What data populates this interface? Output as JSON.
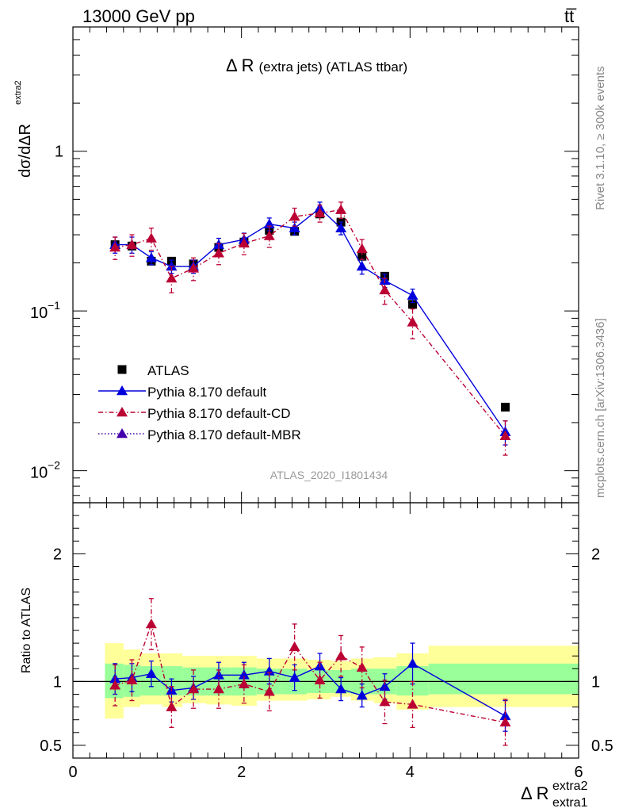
{
  "header": {
    "energy_label": "13000 GeV pp",
    "process_label": "tt̅"
  },
  "side": {
    "rivet": "Rivet 3.1.10, ≥ 300k events",
    "mcplots": "mcplots.cern.ch [arXiv:1306.3436]"
  },
  "chart_data": [
    {
      "type": "scatter",
      "title": "Δ R",
      "title_suffix": "(extra jets) (ATLAS ttbar)",
      "analysis_tag": "ATLAS_2020_I1801434",
      "ylabel_main": "dσ/dΔR",
      "ylabel_extra": "extra2",
      "yscale": "log",
      "xlim": [
        0,
        6
      ],
      "ylim": [
        0.0063,
        6.0
      ],
      "y_tick_labels": [
        "10",
        "1"
      ],
      "y_tick_exponents": [
        "−2",
        "−1"
      ],
      "y_tick_values": [
        0.01,
        0.1,
        1
      ],
      "legend_position": "lower-left",
      "series": [
        {
          "name": "ATLAS",
          "color": "#000000",
          "marker": "square",
          "x": [
            0.5,
            0.7,
            0.93,
            1.17,
            1.43,
            1.73,
            2.03,
            2.33,
            2.63,
            2.93,
            3.18,
            3.43,
            3.7,
            4.03,
            5.13
          ],
          "y": [
            0.26,
            0.255,
            0.205,
            0.205,
            0.197,
            0.25,
            0.27,
            0.32,
            0.315,
            0.405,
            0.36,
            0.22,
            0.165,
            0.11,
            0.025
          ]
        },
        {
          "name": "Pythia 8.170 default",
          "color": "#0000dd",
          "marker": "triangle",
          "line": "solid",
          "x": [
            0.5,
            0.7,
            0.93,
            1.17,
            1.43,
            1.73,
            2.03,
            2.33,
            2.63,
            2.93,
            3.18,
            3.43,
            3.7,
            4.03,
            5.13
          ],
          "y": [
            0.26,
            0.26,
            0.215,
            0.19,
            0.19,
            0.26,
            0.28,
            0.35,
            0.33,
            0.44,
            0.33,
            0.19,
            0.155,
            0.125,
            0.0175
          ],
          "err": [
            0.03,
            0.03,
            0.02,
            0.018,
            0.018,
            0.025,
            0.027,
            0.032,
            0.03,
            0.04,
            0.03,
            0.02,
            0.015,
            0.012,
            0.003
          ]
        },
        {
          "name": "Pythia 8.170 default-CD",
          "color": "#bb0033",
          "marker": "triangle",
          "line": "dashdot",
          "x": [
            0.5,
            0.7,
            0.93,
            1.17,
            1.43,
            1.73,
            2.03,
            2.33,
            2.63,
            2.93,
            3.18,
            3.43,
            3.7,
            4.03,
            5.13
          ],
          "y": [
            0.25,
            0.26,
            0.285,
            0.16,
            0.185,
            0.23,
            0.265,
            0.295,
            0.39,
            0.41,
            0.43,
            0.245,
            0.135,
            0.085,
            0.0165
          ],
          "err": [
            0.04,
            0.04,
            0.045,
            0.03,
            0.03,
            0.035,
            0.04,
            0.045,
            0.05,
            0.05,
            0.05,
            0.035,
            0.025,
            0.018,
            0.004
          ]
        },
        {
          "name": "Pythia 8.170 default-MBR",
          "color": "#4400aa",
          "marker": "triangle",
          "line": "dotted",
          "x": [],
          "y": []
        }
      ]
    },
    {
      "type": "scatter",
      "ylabel": "Ratio to ATLAS",
      "xlabel": "Δ R",
      "xlabel_sup": "extra2",
      "xlabel_sub": "extra1",
      "xlim": [
        0,
        6
      ],
      "ylim": [
        0.4,
        2.4
      ],
      "x_tick_labels": [
        "0",
        "2",
        "4",
        "6"
      ],
      "y_tick_labels": [
        "0.5",
        "1",
        "2"
      ],
      "y_tick_values": [
        0.5,
        1,
        2
      ],
      "bands": {
        "edges": [
          0.38,
          0.6,
          0.8,
          1.06,
          1.3,
          1.58,
          1.88,
          2.18,
          2.48,
          2.78,
          3.06,
          3.3,
          3.57,
          3.84,
          4.22,
          6.0
        ],
        "inner_lo": [
          0.87,
          0.88,
          0.89,
          0.89,
          0.89,
          0.89,
          0.89,
          0.9,
          0.9,
          0.91,
          0.91,
          0.9,
          0.9,
          0.89,
          0.9
        ],
        "inner_hi": [
          1.14,
          1.13,
          1.12,
          1.12,
          1.11,
          1.11,
          1.11,
          1.1,
          1.1,
          1.09,
          1.09,
          1.1,
          1.1,
          1.12,
          1.14
        ],
        "outer_lo": [
          0.71,
          0.8,
          0.82,
          0.8,
          0.83,
          0.82,
          0.81,
          0.85,
          0.85,
          0.86,
          0.88,
          0.85,
          0.83,
          0.78,
          0.8
        ],
        "outer_hi": [
          1.3,
          1.25,
          1.22,
          1.22,
          1.2,
          1.2,
          1.2,
          1.18,
          1.18,
          1.17,
          1.16,
          1.18,
          1.19,
          1.22,
          1.28
        ],
        "inner_color": "#99ff99",
        "outer_color": "#ffff99"
      },
      "series": [
        {
          "name": "Pythia 8.170 default",
          "color": "#0000dd",
          "x": [
            0.5,
            0.7,
            0.93,
            1.17,
            1.43,
            1.73,
            2.03,
            2.33,
            2.63,
            2.93,
            3.18,
            3.43,
            3.7,
            4.03,
            5.13
          ],
          "y": [
            1.02,
            1.03,
            1.06,
            0.93,
            0.95,
            1.05,
            1.05,
            1.08,
            1.03,
            1.12,
            0.94,
            0.89,
            0.96,
            1.14,
            0.73
          ],
          "err": [
            0.12,
            0.11,
            0.1,
            0.09,
            0.09,
            0.1,
            0.1,
            0.1,
            0.1,
            0.1,
            0.09,
            0.09,
            0.1,
            0.16,
            0.12
          ]
        },
        {
          "name": "Pythia 8.170 default-CD",
          "color": "#bb0033",
          "x": [
            0.5,
            0.7,
            0.93,
            1.17,
            1.43,
            1.73,
            2.03,
            2.33,
            2.63,
            2.93,
            3.18,
            3.43,
            3.7,
            4.03,
            5.13
          ],
          "y": [
            0.97,
            1.01,
            1.45,
            0.8,
            0.94,
            0.94,
            0.98,
            0.92,
            1.27,
            1.01,
            1.2,
            1.11,
            0.84,
            0.82,
            0.68
          ],
          "err": [
            0.16,
            0.16,
            0.2,
            0.16,
            0.15,
            0.15,
            0.15,
            0.15,
            0.18,
            0.14,
            0.16,
            0.16,
            0.17,
            0.18,
            0.18
          ]
        }
      ]
    }
  ]
}
